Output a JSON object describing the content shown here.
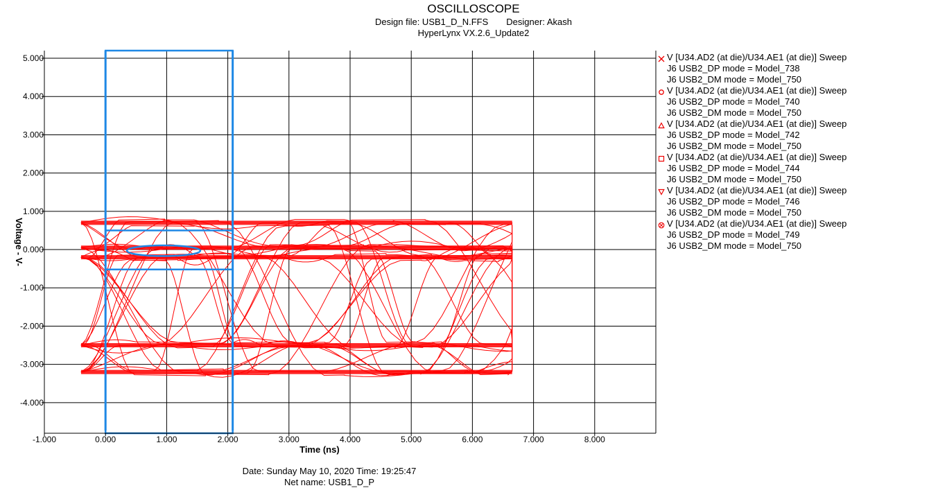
{
  "header": {
    "title": "OSCILLOSCOPE",
    "design_file": "Design file: USB1_D_N.FFS",
    "designer": "Designer: Akash",
    "version": "HyperLynx VX.2.6_Update2"
  },
  "footer": {
    "date_time": "Date: Sunday May 10, 2020   Time: 19:25:47",
    "net_name": "Net name: USB1_D_P"
  },
  "legend": [
    {
      "marker": "x",
      "line1": "V [U34.AD2 (at die)/U34.AE1 (at die)] Sweep",
      "line2": "J6 USB2_DP mode = Model_738",
      "line3": "J6 USB2_DM mode = Model_750"
    },
    {
      "marker": "circle",
      "line1": "V [U34.AD2 (at die)/U34.AE1 (at die)] Sweep",
      "line2": "J6 USB2_DP mode = Model_740",
      "line3": "J6 USB2_DM mode = Model_750"
    },
    {
      "marker": "triangle-up",
      "line1": "V [U34.AD2 (at die)/U34.AE1 (at die)] Sweep",
      "line2": "J6 USB2_DP mode = Model_742",
      "line3": "J6 USB2_DM mode = Model_750"
    },
    {
      "marker": "square",
      "line1": "V [U34.AD2 (at die)/U34.AE1 (at die)] Sweep",
      "line2": "J6 USB2_DP mode = Model_744",
      "line3": "J6 USB2_DM mode = Model_750"
    },
    {
      "marker": "triangle-down",
      "line1": "V [U34.AD2 (at die)/U34.AE1 (at die)] Sweep",
      "line2": "J6 USB2_DP mode = Model_746",
      "line3": "J6 USB2_DM mode = Model_750"
    },
    {
      "marker": "circle-x",
      "line1": "V [U34.AD2 (at die)/U34.AE1 (at die)] Sweep",
      "line2": "J6 USB2_DP mode = Model_749",
      "line3": "J6 USB2_DM mode = Model_750"
    }
  ],
  "chart_data": {
    "type": "line",
    "subtype": "eye-diagram",
    "title": "OSCILLOSCOPE",
    "xlabel": "Time  (ns)",
    "ylabel": "Voltage  - V-",
    "xlim": [
      -1.0,
      9.0
    ],
    "ylim": [
      -4.8,
      5.2
    ],
    "xticks": [
      "-1.000",
      "0.000",
      "1.000",
      "2.000",
      "3.000",
      "4.000",
      "5.000",
      "6.000",
      "7.000",
      "8.000"
    ],
    "yticks": [
      "5.000",
      "4.000",
      "3.000",
      "2.000",
      "1.000",
      "0.000",
      "-1.000",
      "-2.000",
      "-3.000",
      "-4.000"
    ],
    "grid": true,
    "legend_position": "right",
    "trace_color": "#ff0000",
    "mask_color": "#1e88e5",
    "trace_x_range": [
      -0.4,
      6.65
    ],
    "unit_interval_ns": 2.08,
    "levels_v": [
      0.7,
      0.05,
      -0.2,
      -2.5,
      -3.2
    ],
    "mask": {
      "vertical_lines_x": [
        0.0,
        2.08
      ],
      "upper_region": {
        "x": [
          0.0,
          2.08
        ],
        "y": [
          0.5,
          5.2
        ]
      },
      "lower_region": {
        "x": [
          0.0,
          2.08
        ],
        "y": [
          -4.8,
          -0.52
        ]
      },
      "center_ellipse": {
        "cx": 0.95,
        "cy": -0.03,
        "rx": 0.6,
        "ry": 0.14
      }
    },
    "series": [
      {
        "name": "V [U34.AD2 (at die)/U34.AE1 (at die)] Sweep J6 USB2_DP mode = Model_738",
        "marker": "x"
      },
      {
        "name": "V [U34.AD2 (at die)/U34.AE1 (at die)] Sweep J6 USB2_DP mode = Model_740",
        "marker": "circle"
      },
      {
        "name": "V [U34.AD2 (at die)/U34.AE1 (at die)] Sweep J6 USB2_DP mode = Model_742",
        "marker": "triangle-up"
      },
      {
        "name": "V [U34.AD2 (at die)/U34.AE1 (at die)] Sweep J6 USB2_DP mode = Model_744",
        "marker": "square"
      },
      {
        "name": "V [U34.AD2 (at die)/U34.AE1 (at die)] Sweep J6 USB2_DP mode = Model_746",
        "marker": "triangle-down"
      },
      {
        "name": "V [U34.AD2 (at die)/U34.AE1 (at die)] Sweep J6 USB2_DP mode = Model_749",
        "marker": "circle-x"
      }
    ]
  }
}
